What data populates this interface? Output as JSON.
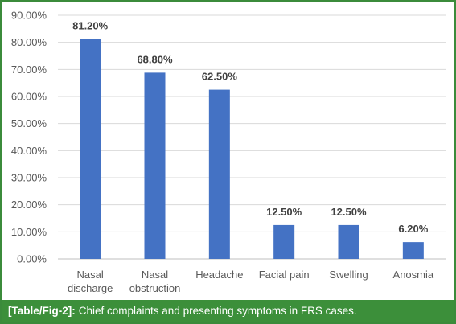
{
  "chart_data": {
    "type": "bar",
    "categories": [
      [
        "Nasal",
        "discharge"
      ],
      [
        "Nasal",
        "obstruction"
      ],
      [
        "Headache"
      ],
      [
        "Facial pain"
      ],
      [
        "Swelling"
      ],
      [
        "Anosmia"
      ]
    ],
    "values": [
      81.2,
      68.8,
      62.5,
      12.5,
      12.5,
      6.2
    ],
    "value_labels": [
      "81.20%",
      "68.80%",
      "62.50%",
      "12.50%",
      "12.50%",
      "6.20%"
    ],
    "yticks": [
      "0.00%",
      "10.00%",
      "20.00%",
      "30.00%",
      "40.00%",
      "50.00%",
      "60.00%",
      "70.00%",
      "80.00%",
      "90.00%"
    ],
    "ylim": [
      0,
      90
    ],
    "grid": true,
    "bar_color": "#4472c4",
    "title": "",
    "xlabel": "",
    "ylabel": ""
  },
  "caption": {
    "label": "[Table/Fig-2]:",
    "text": "Chief complaints and presenting symptoms in FRS cases."
  },
  "colors": {
    "frame": "#3b8b3b",
    "caption_bg": "#3c8f3a",
    "caption_text": "#ffffff",
    "grid": "#d9d9d9",
    "axis_text": "#595959",
    "value_text": "#404040"
  }
}
